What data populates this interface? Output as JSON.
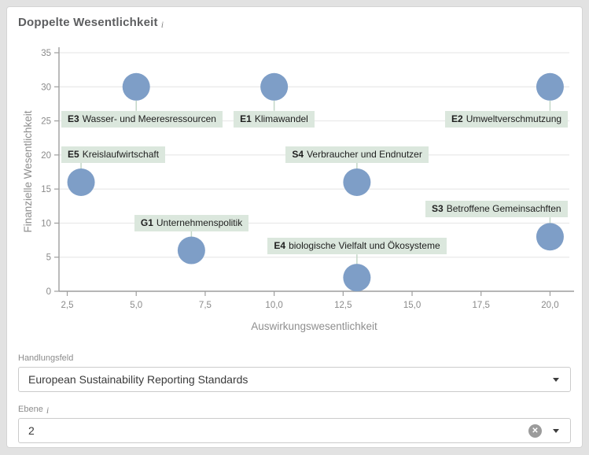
{
  "card": {
    "title": "Doppelte Wesentlichkeit",
    "info_icon": "i"
  },
  "chart_data": {
    "type": "scatter",
    "title": "Doppelte Wesentlichkeit",
    "xlabel": "Auswirkungswesentlichkeit",
    "ylabel": "Finanzielle Wesentlichkeit",
    "xlim": [
      2.2,
      20.7
    ],
    "ylim": [
      0,
      35
    ],
    "x_ticks": [
      2.5,
      5,
      7.5,
      10,
      12.5,
      15,
      17.5,
      20
    ],
    "x_tick_labels": [
      "2,5",
      "5,0",
      "7,5",
      "10,0",
      "12,5",
      "15,0",
      "17,5",
      "20,0"
    ],
    "y_ticks": [
      0,
      5,
      10,
      15,
      20,
      25,
      30,
      35
    ],
    "grid": "horizontal",
    "legend": "none",
    "bubble_color": "#7e9ec7",
    "label_bg": "#dbe7dd",
    "connector_color": "#c3d7c7",
    "points": [
      {
        "code": "E3",
        "name": "Wasser- und Meeresressourcen",
        "x": 5,
        "y": 30,
        "label_side": "below"
      },
      {
        "code": "E1",
        "name": "Klimawandel",
        "x": 10,
        "y": 30,
        "label_side": "below"
      },
      {
        "code": "E2",
        "name": "Umweltverschmutzung",
        "x": 20,
        "y": 30,
        "label_side": "below"
      },
      {
        "code": "E5",
        "name": "Kreislaufwirtschaft",
        "x": 3,
        "y": 16,
        "label_side": "above"
      },
      {
        "code": "S4",
        "name": "Verbraucher und Endnutzer",
        "x": 13,
        "y": 16,
        "label_side": "above"
      },
      {
        "code": "G1",
        "name": "Unternehmenspolitik",
        "x": 7,
        "y": 6,
        "label_side": "above"
      },
      {
        "code": "E4",
        "name": "biologische Vielfalt und Ökosysteme",
        "x": 13,
        "y": 2,
        "label_side": "above",
        "label_gap": 12
      },
      {
        "code": "S3",
        "name": "Betroffene Gemeinsachften",
        "x": 20,
        "y": 8,
        "label_side": "above"
      }
    ]
  },
  "controls": {
    "handlungsfeld": {
      "label": "Handlungsfeld",
      "value": "European Sustainability Reporting Standards"
    },
    "ebene": {
      "label": "Ebene",
      "info_icon": "i",
      "value": "2",
      "clear_glyph": "✕"
    }
  }
}
